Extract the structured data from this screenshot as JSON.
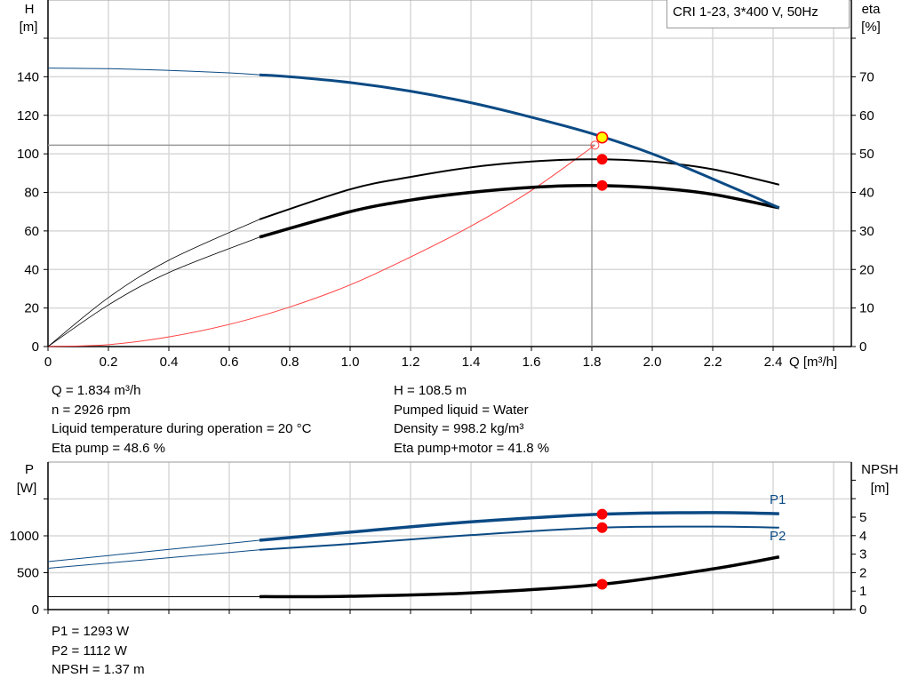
{
  "chart_data": [
    {
      "type": "line",
      "legend_box": "CRI 1-23, 3*400 V, 50Hz",
      "xlabel": "Q [m³/h]",
      "ylabel": "H",
      "ylabel_unit": "[m]",
      "y2label": "eta",
      "y2label_unit": "[%]",
      "xlim": [
        0,
        2.6
      ],
      "ylim": [
        0,
        160
      ],
      "y2lim": [
        0,
        80
      ],
      "x_ticks": [
        "0",
        "0.2",
        "0.4",
        "0.6",
        "0.8",
        "1.0",
        "1.2",
        "1.4",
        "1.6",
        "1.8",
        "2.0",
        "2.2",
        "2.4"
      ],
      "y_ticks": [
        "0",
        "20",
        "40",
        "60",
        "80",
        "100",
        "120",
        "140"
      ],
      "y2_ticks": [
        "0",
        "10",
        "20",
        "30",
        "40",
        "50",
        "60",
        "70"
      ],
      "grid": true,
      "series": [
        {
          "key": "H",
          "axis": "left",
          "color": "#0b4a84",
          "x": [
            0,
            0.2,
            0.4,
            0.6,
            0.7,
            0.8,
            1.0,
            1.2,
            1.4,
            1.6,
            1.8,
            2.0,
            2.2,
            2.42
          ],
          "y": [
            144.5,
            144.2,
            143.3,
            142,
            141,
            140,
            137,
            132.5,
            126.5,
            119,
            110.5,
            100,
            87,
            72
          ]
        },
        {
          "key": "eta_pump",
          "axis": "right",
          "color": "#000000",
          "x": [
            0,
            0.2,
            0.4,
            0.7,
            1.0,
            1.2,
            1.4,
            1.6,
            1.8,
            2.0,
            2.2,
            2.42
          ],
          "y": [
            0,
            12.7,
            22.4,
            33,
            40.8,
            44,
            46.5,
            48,
            48.6,
            48,
            46,
            42
          ]
        },
        {
          "key": "eta_pump_motor",
          "axis": "right",
          "color": "#000000",
          "x": [
            0,
            0.2,
            0.4,
            0.7,
            1.0,
            1.2,
            1.4,
            1.6,
            1.8,
            2.0,
            2.2,
            2.42
          ],
          "y": [
            0,
            10.8,
            19.2,
            28.4,
            35,
            38,
            40,
            41.3,
            41.8,
            41.2,
            39.5,
            36
          ]
        },
        {
          "key": "system",
          "axis": "left",
          "color": "#ff4040",
          "x": [
            0,
            0.2,
            0.4,
            0.6,
            0.8,
            1.0,
            1.2,
            1.4,
            1.6,
            1.81
          ],
          "y": [
            0,
            1,
            5,
            11.5,
            20.5,
            32,
            46.5,
            62.5,
            81,
            104.5
          ]
        }
      ],
      "operating_point": {
        "Q": 1.834,
        "H": 108.5,
        "eta_pump": 48.6,
        "eta_pump_motor": 41.8
      },
      "system_end": {
        "Q": 1.81,
        "H": 104.5
      }
    },
    {
      "type": "line",
      "ylabel": "P",
      "ylabel_unit": "[W]",
      "y2label": "NPSH",
      "y2label_unit": "[m]",
      "xlim": [
        0,
        2.6
      ],
      "ylim": [
        0,
        2000
      ],
      "y2lim": [
        0,
        8
      ],
      "y_ticks": [
        "0",
        "500",
        "1000"
      ],
      "y2_ticks": [
        "0",
        "1",
        "2",
        "3",
        "4",
        "5"
      ],
      "grid": true,
      "series": [
        {
          "name": "P1",
          "axis": "left",
          "color": "#0b4a84",
          "x": [
            0,
            0.7,
            1.0,
            1.4,
            1.834,
            2.2,
            2.42
          ],
          "y": [
            650,
            940,
            1050,
            1190,
            1293,
            1315,
            1300
          ]
        },
        {
          "name": "P2",
          "axis": "left",
          "color": "#0b4a84",
          "x": [
            0,
            0.7,
            1.0,
            1.4,
            1.834,
            2.2,
            2.42
          ],
          "y": [
            560,
            810,
            890,
            1010,
            1112,
            1125,
            1112
          ]
        },
        {
          "key": "NPSH",
          "axis": "right",
          "color": "#000000",
          "x": [
            0,
            0.7,
            1.0,
            1.4,
            1.834,
            2.2,
            2.42
          ],
          "y": [
            0.7,
            0.7,
            0.72,
            0.9,
            1.37,
            2.2,
            2.85
          ]
        }
      ],
      "operating_point": {
        "Q": 1.834,
        "P1": 1293,
        "P2": 1112,
        "NPSH": 1.37
      }
    }
  ],
  "info": {
    "left": [
      "Q = 1.834 m³/h",
      "n = 2926 rpm",
      "Liquid temperature during operation = 20 °C",
      "Eta pump = 48.6 %"
    ],
    "right": [
      "H = 108.5 m",
      "Pumped liquid = Water",
      "Density = 998.2 kg/m³",
      "Eta pump+motor = 41.8 %"
    ],
    "bottom": [
      "P1 = 1293 W",
      "P2 = 1112 W",
      "NPSH = 1.37 m"
    ]
  },
  "colors": {
    "curve_blue": "#0b4a84",
    "marker": "#ff0000",
    "op_fill": "#ffff00",
    "system": "#ff4040",
    "grid": "#d8d8d8"
  }
}
